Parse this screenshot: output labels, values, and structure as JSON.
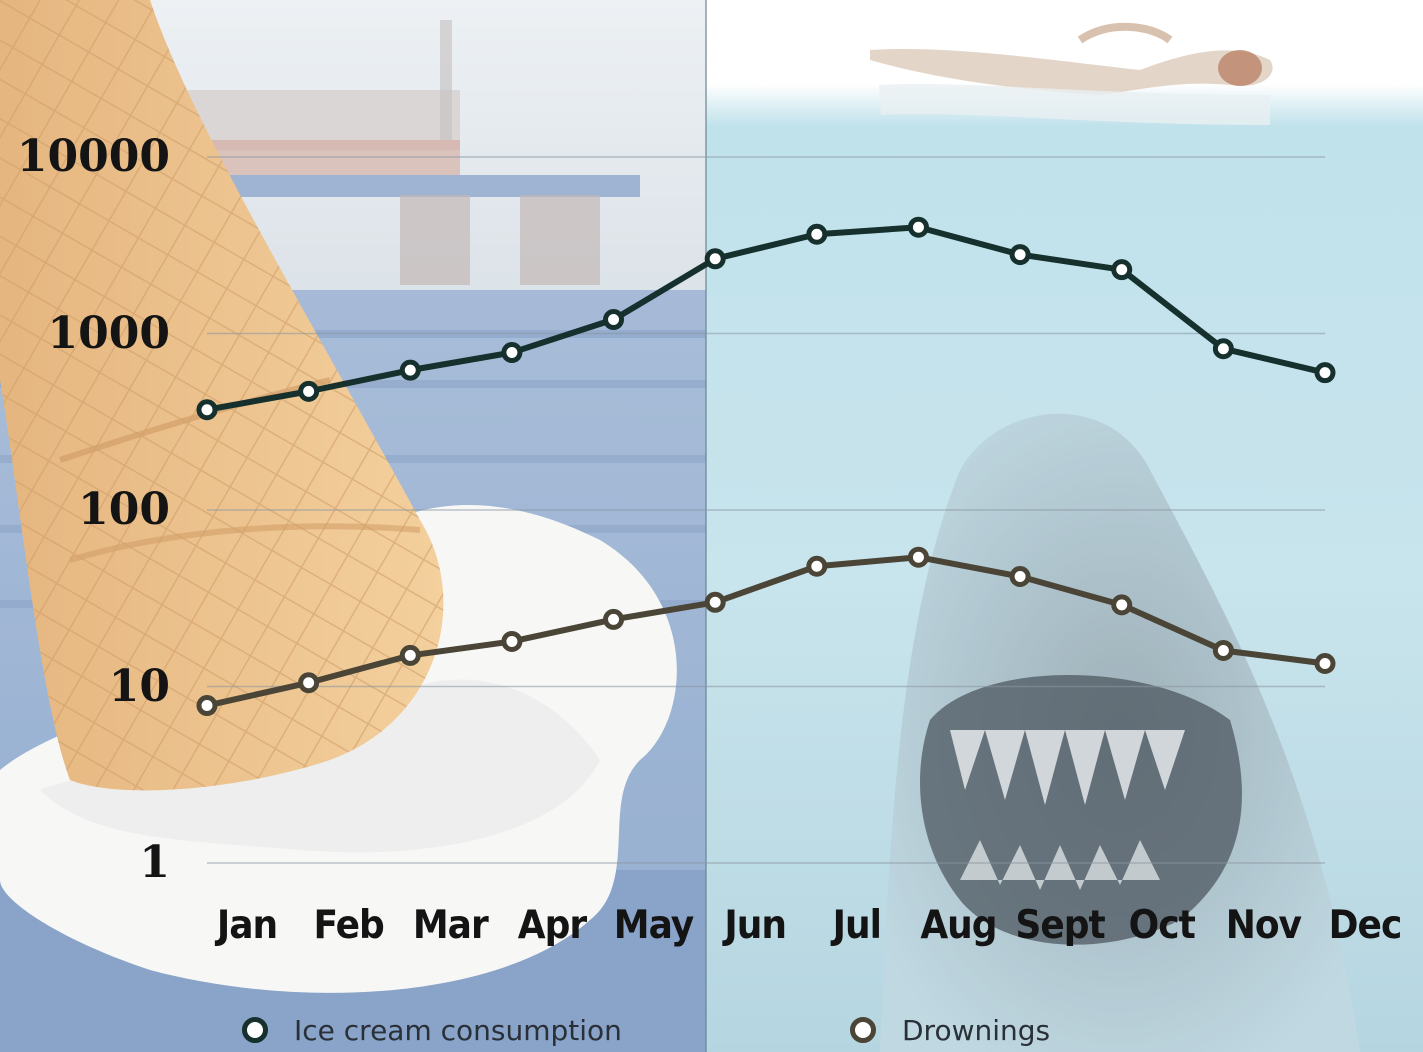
{
  "chart_data": {
    "type": "line",
    "categories": [
      "Jan",
      "Feb",
      "Mar",
      "Apr",
      "May",
      "Jun",
      "Jul",
      "Aug",
      "Sept",
      "Oct",
      "Nov",
      "Dec"
    ],
    "y_scale": "log",
    "ylim": [
      1,
      10000
    ],
    "yticks": [
      {
        "value": 1,
        "label": "1"
      },
      {
        "value": 10,
        "label": "10"
      },
      {
        "value": 100,
        "label": "100"
      },
      {
        "value": 1000,
        "label": "1000"
      },
      {
        "value": 10000,
        "label": "10000"
      }
    ],
    "grid": true,
    "legend_position": "bottom",
    "series": [
      {
        "name": "Ice cream consumption",
        "color": "#15302d",
        "values": [
          370,
          470,
          620,
          780,
          1200,
          2650,
          3650,
          4000,
          2800,
          2300,
          820,
          600
        ]
      },
      {
        "name": "Drownings",
        "color": "#4a4536",
        "values": [
          7.8,
          10.5,
          15,
          18,
          24,
          30,
          48,
          54,
          42,
          29,
          16,
          13.5
        ]
      }
    ]
  },
  "background": {
    "left_scene": "melted ice cream cone on blue bench",
    "right_scene": "shark swimming up toward swimmer"
  }
}
